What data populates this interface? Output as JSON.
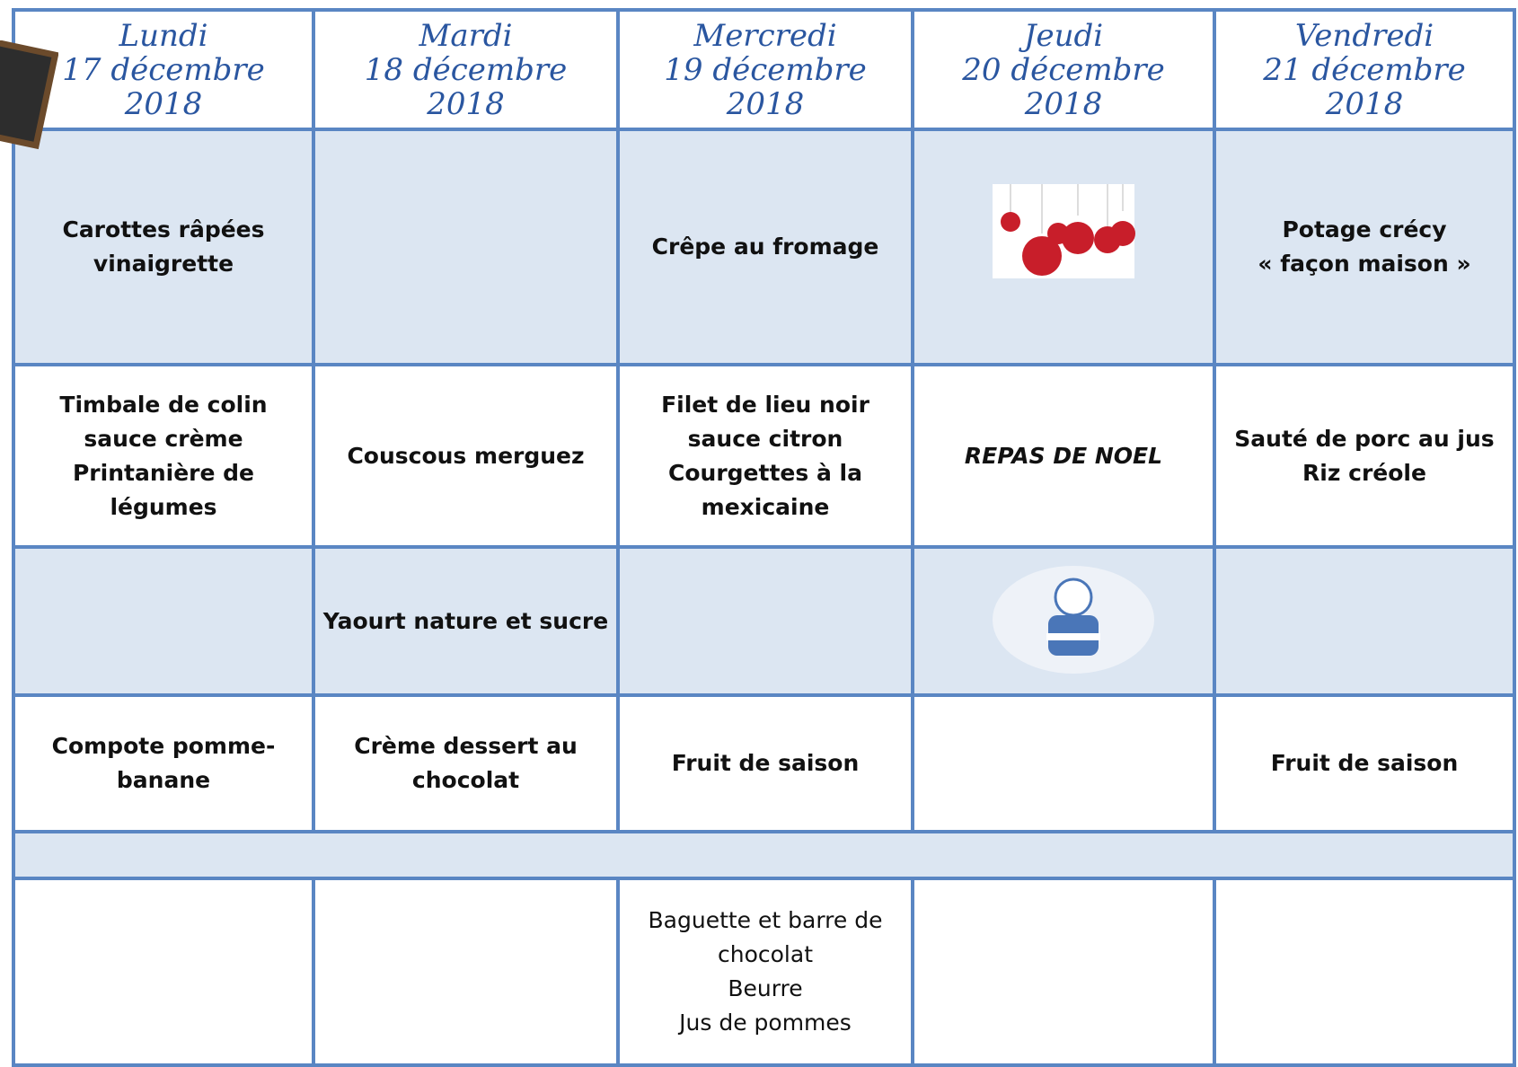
{
  "table": {
    "headers": [
      {
        "day": "Lundi",
        "date": "17 décembre",
        "year": "2018"
      },
      {
        "day": "Mardi",
        "date": "18 décembre",
        "year": "2018"
      },
      {
        "day": "Mercredi",
        "date": "19 décembre",
        "year": "2018"
      },
      {
        "day": "Jeudi",
        "date": "20 décembre",
        "year": "2018"
      },
      {
        "day": "Vendredi",
        "date": "21 décembre",
        "year": "2018"
      }
    ],
    "rows": [
      [
        [
          "Carottes râpées vinaigrette"
        ],
        null,
        [
          "Crêpe au fromage"
        ],
        null,
        [
          "Potage crécy",
          "« façon maison »"
        ]
      ],
      [
        [
          "Timbale de colin sauce crème",
          "Printanière de légumes"
        ],
        [
          "Couscous merguez"
        ],
        [
          "Filet de lieu noir sauce citron",
          "Courgettes à la mexicaine"
        ],
        [
          "REPAS DE NOEL"
        ],
        [
          "Sauté de porc au jus",
          "Riz créole"
        ]
      ],
      [
        null,
        [
          "Yaourt nature et sucre"
        ],
        null,
        null,
        null
      ],
      [
        [
          "Compote pomme-banane"
        ],
        [
          "Crème dessert au chocolat"
        ],
        [
          "Fruit de saison"
        ],
        null,
        [
          "Fruit de saison"
        ]
      ]
    ],
    "snack": [
      null,
      null,
      [
        "Baguette et barre de chocolat",
        "Beurre",
        "Jus de pommes"
      ],
      null,
      null
    ]
  }
}
